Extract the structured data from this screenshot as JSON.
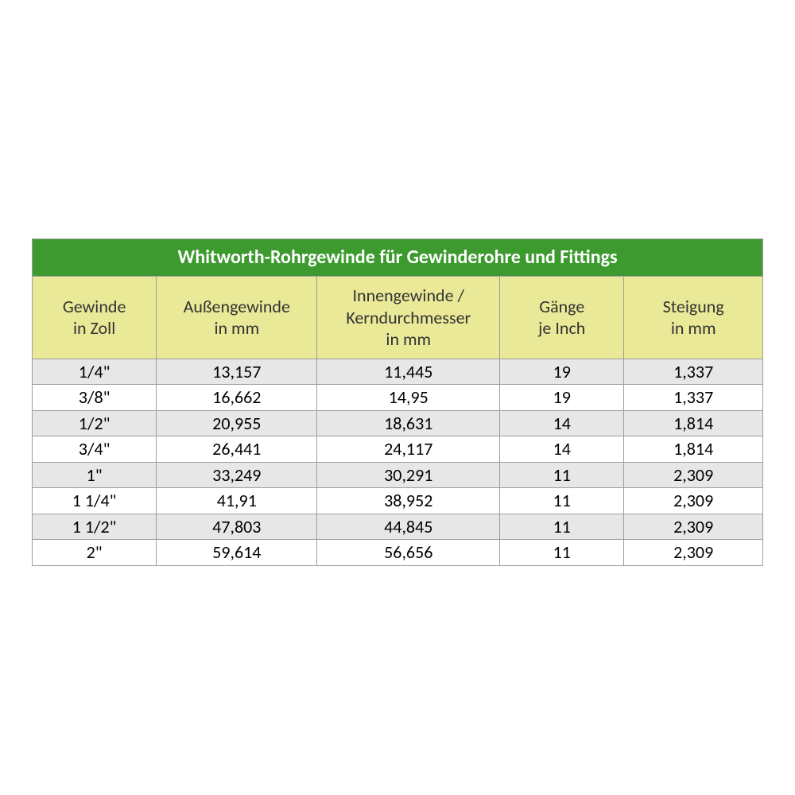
{
  "table": {
    "title": "Whitworth-Rohrgewinde für Gewinderohre und Fittings",
    "title_bg": "#3c9a2e",
    "title_fg": "#ffffff",
    "subheader_bg": "#e9e997",
    "subheader_fg": "#333333",
    "row_alt_bg": "#e7e7e7",
    "row_bg": "#ffffff",
    "border_color": "#9e9e9e",
    "col_widths_pct": [
      17,
      22,
      25,
      17,
      19
    ],
    "columns": [
      {
        "line1": "Gewinde",
        "line2": "in Zoll"
      },
      {
        "line1": "Außengewinde",
        "line2": "in mm"
      },
      {
        "line1": "Innengewinde /",
        "line2": "Kerndurchmesser",
        "line3": "in mm"
      },
      {
        "line1": "Gänge",
        "line2": "je Inch"
      },
      {
        "line1": "Steigung",
        "line2": "in mm"
      }
    ],
    "rows": [
      [
        "1/4\"",
        "13,157",
        "11,445",
        "19",
        "1,337"
      ],
      [
        "3/8\"",
        "16,662",
        "14,95",
        "19",
        "1,337"
      ],
      [
        "1/2\"",
        "20,955",
        "18,631",
        "14",
        "1,814"
      ],
      [
        "3/4\"",
        "26,441",
        "24,117",
        "14",
        "1,814"
      ],
      [
        "1\"",
        "33,249",
        "30,291",
        "11",
        "2,309"
      ],
      [
        "1 1/4\"",
        "41,91",
        "38,952",
        "11",
        "2,309"
      ],
      [
        "1 1/2\"",
        "47,803",
        "44,845",
        "11",
        "2,309"
      ],
      [
        "2\"",
        "59,614",
        "56,656",
        "11",
        "2,309"
      ]
    ]
  }
}
